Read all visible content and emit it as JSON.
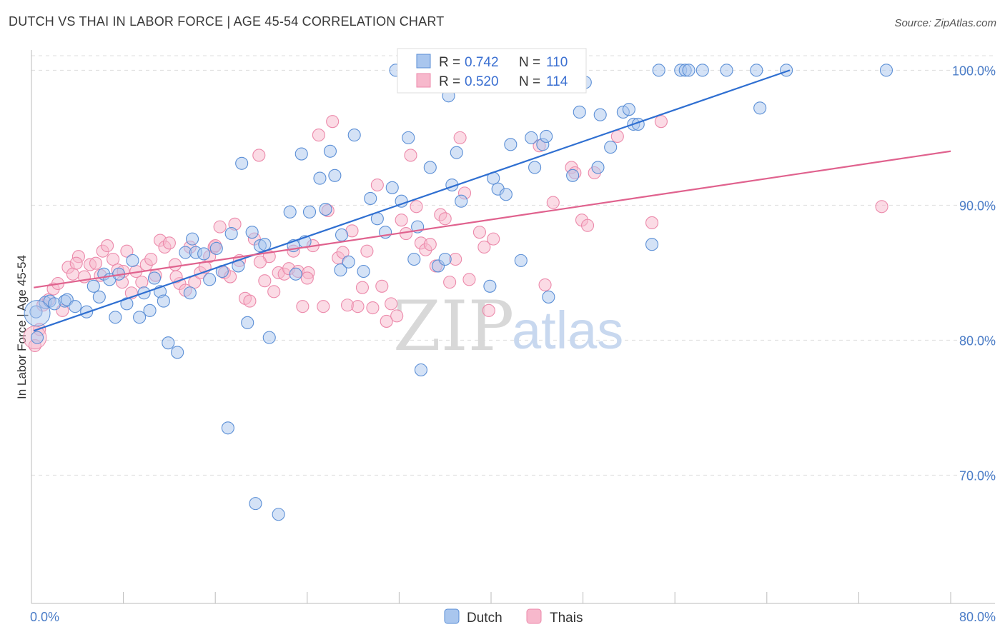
{
  "title": "DUTCH VS THAI IN LABOR FORCE | AGE 45-54 CORRELATION CHART",
  "source": "Source: ZipAtlas.com",
  "watermark": {
    "zip": "ZIP",
    "atlas": "atlas"
  },
  "legend": {
    "rows": [
      {
        "r_label": "R =",
        "r_value": "0.742",
        "n_label": "N =",
        "n_value": "110"
      },
      {
        "r_label": "R =",
        "r_value": "0.520",
        "n_label": "N =",
        "n_value": "114"
      }
    ]
  },
  "colors": {
    "dutch_fill": "#a9c6ee",
    "dutch_stroke": "#5b8fd6",
    "dutch_line": "#2f6fd1",
    "thai_fill": "#f7b8cc",
    "thai_stroke": "#ec8aab",
    "thai_line": "#e0628e",
    "tick": "#4a7cc7",
    "grid": "#dddddd"
  },
  "chart_data": {
    "type": "scatter",
    "title": "DUTCH VS THAI IN LABOR FORCE | AGE 45-54 CORRELATION CHART",
    "xlabel": "",
    "ylabel": "In Labor Force | Age 45-54",
    "xlim": [
      0,
      80
    ],
    "ylim": [
      60.5,
      101.5
    ],
    "x_ticks": [
      "0.0%",
      "80.0%"
    ],
    "y_ticks": [
      {
        "value": 70,
        "label": "70.0%"
      },
      {
        "value": 80,
        "label": "80.0%"
      },
      {
        "value": 90,
        "label": "90.0%"
      },
      {
        "value": 100,
        "label": "100.0%"
      }
    ],
    "grid": true,
    "legend_position": "top-center",
    "series": [
      {
        "name": "Dutch",
        "color": "#a9c6ee",
        "r": 0.742,
        "n": 110,
        "trend": {
          "x": [
            0.2,
            66.0
          ],
          "y": [
            80.7,
            100.0
          ]
        },
        "points": [
          [
            0.4,
            82.1
          ],
          [
            0.5,
            80.2
          ],
          [
            1.2,
            82.8
          ],
          [
            1.6,
            82.9
          ],
          [
            2.0,
            82.7
          ],
          [
            2.9,
            82.9
          ],
          [
            3.1,
            83.0
          ],
          [
            3.8,
            82.5
          ],
          [
            4.8,
            82.1
          ],
          [
            5.4,
            84.0
          ],
          [
            5.9,
            83.2
          ],
          [
            6.3,
            84.9
          ],
          [
            6.8,
            84.5
          ],
          [
            7.3,
            81.7
          ],
          [
            7.6,
            84.9
          ],
          [
            8.3,
            82.7
          ],
          [
            8.8,
            85.9
          ],
          [
            9.4,
            81.7
          ],
          [
            9.8,
            83.5
          ],
          [
            10.3,
            82.2
          ],
          [
            10.7,
            84.6
          ],
          [
            11.2,
            83.6
          ],
          [
            11.5,
            82.9
          ],
          [
            11.9,
            79.8
          ],
          [
            12.7,
            79.1
          ],
          [
            13.4,
            86.5
          ],
          [
            13.8,
            83.5
          ],
          [
            14.3,
            86.5
          ],
          [
            15.0,
            86.4
          ],
          [
            15.5,
            84.5
          ],
          [
            16.1,
            86.8
          ],
          [
            16.6,
            85.1
          ],
          [
            17.1,
            73.5
          ],
          [
            17.4,
            87.9
          ],
          [
            18.0,
            85.5
          ],
          [
            18.3,
            93.1
          ],
          [
            18.8,
            81.3
          ],
          [
            19.2,
            88.0
          ],
          [
            19.9,
            87.0
          ],
          [
            20.3,
            87.1
          ],
          [
            20.7,
            80.2
          ],
          [
            21.5,
            67.1
          ],
          [
            19.5,
            67.9
          ],
          [
            22.5,
            89.5
          ],
          [
            22.8,
            87.0
          ],
          [
            23.5,
            93.8
          ],
          [
            23.8,
            87.3
          ],
          [
            24.2,
            89.5
          ],
          [
            25.1,
            92.0
          ],
          [
            25.6,
            89.7
          ],
          [
            26.0,
            94.0
          ],
          [
            26.4,
            92.2
          ],
          [
            26.9,
            85.2
          ],
          [
            27.6,
            85.8
          ],
          [
            28.1,
            95.2
          ],
          [
            28.9,
            85.1
          ],
          [
            29.5,
            90.5
          ],
          [
            30.1,
            89.0
          ],
          [
            30.8,
            88.0
          ],
          [
            31.4,
            91.3
          ],
          [
            31.7,
            100.0
          ],
          [
            32.2,
            90.3
          ],
          [
            32.8,
            95.0
          ],
          [
            33.3,
            86.0
          ],
          [
            33.6,
            88.4
          ],
          [
            33.9,
            77.8
          ],
          [
            34.7,
            92.8
          ],
          [
            35.4,
            85.5
          ],
          [
            36.3,
            98.1
          ],
          [
            36.6,
            91.5
          ],
          [
            37.0,
            93.9
          ],
          [
            37.4,
            90.3
          ],
          [
            37.9,
            100.0
          ],
          [
            39.4,
            99.3
          ],
          [
            39.9,
            84.0
          ],
          [
            40.2,
            92.0
          ],
          [
            40.6,
            91.2
          ],
          [
            41.3,
            90.8
          ],
          [
            41.7,
            94.5
          ],
          [
            42.6,
            85.9
          ],
          [
            43.5,
            95.0
          ],
          [
            43.8,
            92.8
          ],
          [
            44.5,
            94.5
          ],
          [
            44.8,
            95.1
          ],
          [
            45.0,
            83.2
          ],
          [
            47.1,
            92.2
          ],
          [
            47.7,
            96.9
          ],
          [
            48.2,
            99.1
          ],
          [
            49.3,
            92.8
          ],
          [
            49.5,
            96.7
          ],
          [
            50.4,
            94.3
          ],
          [
            51.5,
            96.9
          ],
          [
            52.0,
            97.1
          ],
          [
            52.4,
            96.0
          ],
          [
            52.8,
            96.0
          ],
          [
            54.0,
            87.1
          ],
          [
            54.6,
            100.0
          ],
          [
            56.5,
            100.0
          ],
          [
            56.9,
            100.0
          ],
          [
            57.2,
            100.0
          ],
          [
            58.4,
            100.0
          ],
          [
            60.5,
            100.0
          ],
          [
            63.1,
            100.0
          ],
          [
            63.4,
            97.2
          ],
          [
            65.7,
            100.0
          ],
          [
            74.4,
            100.0
          ],
          [
            23.0,
            84.9
          ],
          [
            14.0,
            87.5
          ],
          [
            27.0,
            87.8
          ],
          [
            36.0,
            86.0
          ]
        ]
      },
      {
        "name": "Thais",
        "color": "#f7b8cc",
        "r": 0.52,
        "n": 114,
        "trend": {
          "x": [
            0.2,
            80.0
          ],
          "y": [
            83.9,
            94.0
          ]
        },
        "points": [
          [
            0.3,
            79.6
          ],
          [
            0.7,
            80.8
          ],
          [
            1.0,
            82.6
          ],
          [
            1.5,
            83.0
          ],
          [
            1.9,
            83.8
          ],
          [
            2.3,
            84.2
          ],
          [
            2.7,
            82.2
          ],
          [
            3.2,
            85.4
          ],
          [
            3.6,
            84.9
          ],
          [
            4.1,
            86.2
          ],
          [
            4.6,
            84.7
          ],
          [
            5.1,
            85.6
          ],
          [
            5.6,
            85.7
          ],
          [
            6.2,
            86.6
          ],
          [
            6.6,
            87.0
          ],
          [
            7.1,
            86.0
          ],
          [
            7.5,
            85.2
          ],
          [
            7.9,
            84.3
          ],
          [
            8.3,
            86.6
          ],
          [
            8.7,
            83.5
          ],
          [
            9.1,
            85.1
          ],
          [
            9.6,
            84.3
          ],
          [
            10.0,
            85.6
          ],
          [
            10.4,
            86.0
          ],
          [
            10.8,
            84.8
          ],
          [
            11.2,
            87.4
          ],
          [
            11.6,
            86.9
          ],
          [
            12.0,
            87.2
          ],
          [
            12.5,
            85.6
          ],
          [
            12.9,
            84.2
          ],
          [
            13.4,
            83.7
          ],
          [
            13.8,
            86.9
          ],
          [
            14.2,
            84.3
          ],
          [
            14.7,
            85.0
          ],
          [
            15.1,
            85.4
          ],
          [
            15.5,
            86.2
          ],
          [
            15.9,
            86.9
          ],
          [
            16.4,
            88.4
          ],
          [
            16.8,
            85.0
          ],
          [
            17.3,
            84.7
          ],
          [
            17.7,
            88.6
          ],
          [
            18.1,
            85.9
          ],
          [
            18.6,
            83.1
          ],
          [
            19.0,
            82.9
          ],
          [
            19.4,
            87.5
          ],
          [
            19.8,
            93.7
          ],
          [
            20.3,
            84.4
          ],
          [
            20.7,
            86.2
          ],
          [
            21.1,
            83.6
          ],
          [
            21.5,
            85.0
          ],
          [
            22.0,
            84.9
          ],
          [
            22.4,
            85.3
          ],
          [
            22.8,
            86.6
          ],
          [
            23.2,
            85.1
          ],
          [
            23.6,
            82.5
          ],
          [
            24.1,
            85.0
          ],
          [
            24.5,
            87.0
          ],
          [
            25.0,
            95.2
          ],
          [
            25.4,
            82.5
          ],
          [
            25.8,
            89.6
          ],
          [
            26.2,
            96.2
          ],
          [
            26.7,
            86.1
          ],
          [
            27.1,
            86.5
          ],
          [
            27.5,
            82.6
          ],
          [
            27.9,
            88.1
          ],
          [
            28.4,
            82.5
          ],
          [
            28.8,
            83.9
          ],
          [
            29.2,
            86.6
          ],
          [
            29.7,
            82.4
          ],
          [
            30.1,
            91.5
          ],
          [
            30.5,
            84.0
          ],
          [
            30.9,
            81.4
          ],
          [
            31.3,
            82.7
          ],
          [
            31.8,
            81.8
          ],
          [
            32.2,
            88.9
          ],
          [
            32.6,
            87.9
          ],
          [
            33.0,
            93.7
          ],
          [
            33.5,
            89.9
          ],
          [
            33.9,
            87.2
          ],
          [
            34.3,
            86.7
          ],
          [
            34.7,
            87.1
          ],
          [
            35.2,
            85.5
          ],
          [
            35.6,
            89.3
          ],
          [
            36.0,
            89.0
          ],
          [
            36.4,
            84.3
          ],
          [
            36.9,
            86.0
          ],
          [
            37.3,
            95.0
          ],
          [
            37.7,
            90.9
          ],
          [
            38.1,
            84.5
          ],
          [
            38.5,
            100.0
          ],
          [
            39.0,
            88.0
          ],
          [
            39.4,
            86.9
          ],
          [
            39.8,
            82.2
          ],
          [
            40.2,
            87.5
          ],
          [
            43.7,
            100.0
          ],
          [
            44.2,
            94.4
          ],
          [
            44.7,
            84.1
          ],
          [
            45.4,
            90.2
          ],
          [
            47.0,
            92.8
          ],
          [
            47.3,
            92.4
          ],
          [
            47.9,
            88.9
          ],
          [
            48.4,
            88.5
          ],
          [
            49.0,
            92.4
          ],
          [
            51.0,
            95.1
          ],
          [
            54.0,
            88.7
          ],
          [
            54.8,
            96.2
          ],
          [
            74.0,
            89.9
          ],
          [
            6.0,
            84.8
          ],
          [
            3.9,
            85.7
          ],
          [
            8.0,
            85.1
          ],
          [
            12.6,
            84.7
          ],
          [
            16.0,
            87.0
          ],
          [
            19.9,
            85.8
          ],
          [
            24.0,
            84.6
          ]
        ]
      }
    ]
  },
  "bottom_legend": [
    {
      "label": "Dutch"
    },
    {
      "label": "Thais"
    }
  ]
}
